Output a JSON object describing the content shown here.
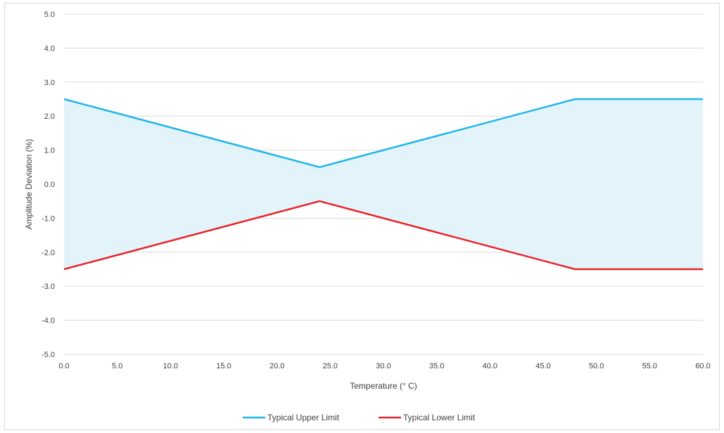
{
  "chart_data": {
    "type": "area",
    "title": "",
    "xlabel": "Temperature (° C)",
    "ylabel": "Amplitude Deviation (%)",
    "xlim": [
      0,
      60
    ],
    "ylim": [
      -5,
      5
    ],
    "x_ticks": [
      "0.0",
      "5.0",
      "10.0",
      "15.0",
      "20.0",
      "25.0",
      "30.0",
      "35.0",
      "40.0",
      "45.0",
      "50.0",
      "55.0",
      "60.0"
    ],
    "y_ticks": [
      "5.0",
      "4.0",
      "3.0",
      "2.0",
      "1.0",
      "0.0",
      "-1.0",
      "-2.0",
      "-3.0",
      "-4.0",
      "-5.0"
    ],
    "grid": true,
    "legend_position": "bottom",
    "band_fill_color": "#e3f3fa",
    "series": [
      {
        "name": "Typical Upper Limit",
        "color": "#1fb5e8",
        "x": [
          0,
          24,
          48,
          60
        ],
        "y": [
          2.5,
          0.5,
          2.5,
          2.5
        ]
      },
      {
        "name": "Typical Lower Limit",
        "color": "#e8232a",
        "x": [
          0,
          24,
          48,
          60
        ],
        "y": [
          -2.5,
          -0.5,
          -2.5,
          -2.5
        ]
      }
    ]
  }
}
